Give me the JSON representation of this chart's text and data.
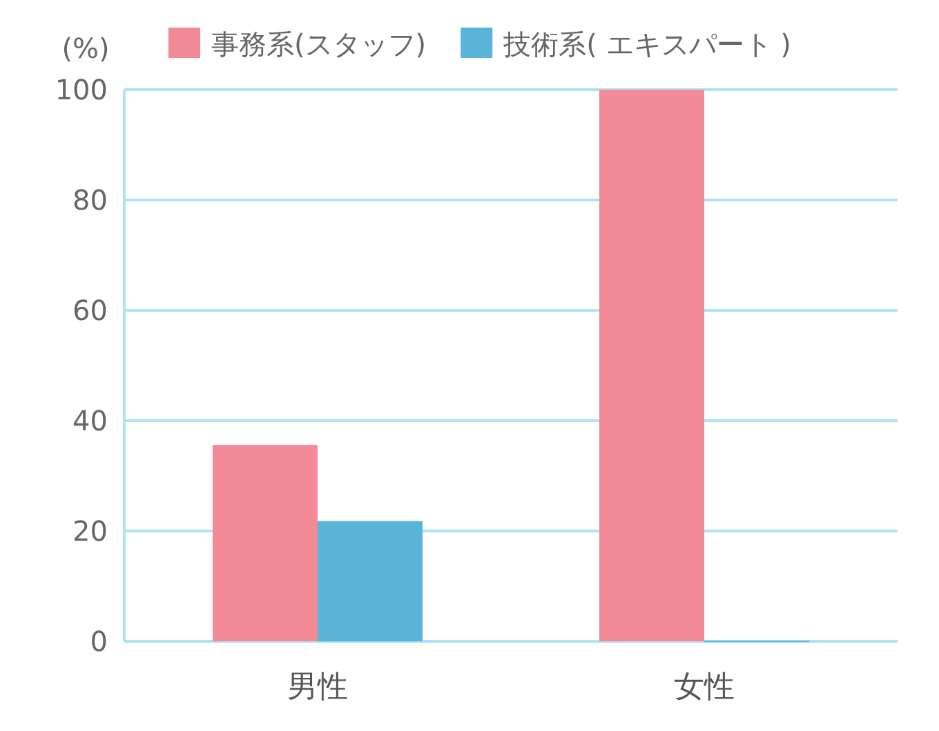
{
  "chart_data": {
    "type": "bar",
    "ylabel": "(%)",
    "categories": [
      "男性",
      "女性"
    ],
    "series": [
      {
        "name": "事務系(スタッフ)",
        "color": "#f28a97",
        "values": [
          35.6,
          100
        ]
      },
      {
        "name": "技術系( エキスパート )",
        "color": "#5ab4d9",
        "values": [
          21.8,
          0
        ]
      }
    ],
    "ylim": [
      0,
      100
    ],
    "yticks": [
      0,
      20,
      40,
      60,
      80,
      100
    ],
    "grid": "y",
    "legend": "top"
  }
}
